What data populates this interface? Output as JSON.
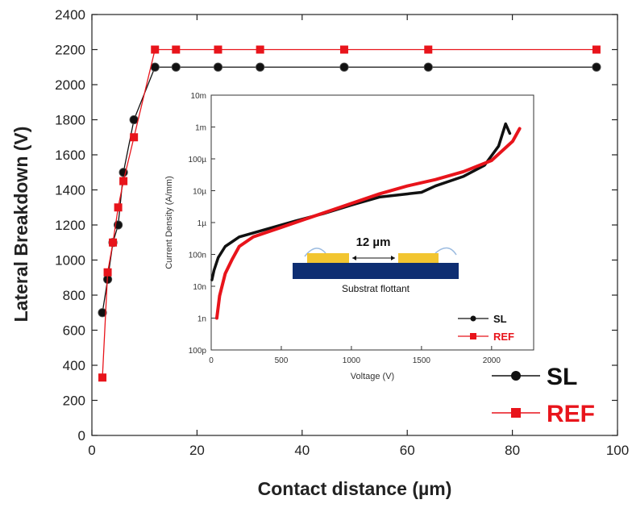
{
  "chart_data": [
    {
      "type": "line",
      "title": "",
      "xlabel": "Contact distance (µm)",
      "ylabel": "Lateral Breakdown (V)",
      "xlim": [
        0,
        100
      ],
      "ylim": [
        0,
        2400
      ],
      "x_ticks": [
        0,
        20,
        40,
        60,
        80,
        100
      ],
      "y_ticks": [
        0,
        200,
        400,
        600,
        800,
        1000,
        1200,
        1400,
        1600,
        1800,
        2000,
        2200,
        2400
      ],
      "legend_position": "bottom-right",
      "series": [
        {
          "name": "SL",
          "color": "#111111",
          "marker": "circle",
          "points": [
            [
              2,
              700
            ],
            [
              3,
              890
            ],
            [
              4,
              1100
            ],
            [
              5,
              1200
            ],
            [
              6,
              1500
            ],
            [
              8,
              1800
            ],
            [
              12,
              2100
            ],
            [
              16,
              2100
            ],
            [
              24,
              2100
            ],
            [
              32,
              2100
            ],
            [
              48,
              2100
            ],
            [
              64,
              2100
            ],
            [
              96,
              2100
            ]
          ]
        },
        {
          "name": "REF",
          "color": "#e8141b",
          "marker": "square",
          "points": [
            [
              2,
              330
            ],
            [
              3,
              930
            ],
            [
              4,
              1100
            ],
            [
              5,
              1300
            ],
            [
              6,
              1450
            ],
            [
              8,
              1700
            ],
            [
              12,
              2200
            ],
            [
              16,
              2200
            ],
            [
              24,
              2200
            ],
            [
              32,
              2200
            ],
            [
              48,
              2200
            ],
            [
              64,
              2200
            ],
            [
              96,
              2200
            ]
          ]
        }
      ]
    },
    {
      "type": "line",
      "title": "",
      "xlabel": "Voltage (V)",
      "ylabel": "Current Density (A/mm)",
      "xlim": [
        0,
        2300
      ],
      "ylim_log10": [
        -10,
        -2
      ],
      "y_scale": "log",
      "x_ticks": [
        0,
        500,
        1000,
        1500,
        2000
      ],
      "y_ticks_log10": [
        -2,
        -3,
        -4,
        -5,
        -6,
        -7,
        -8,
        -9,
        -10
      ],
      "y_tick_labels": [
        "10m",
        "1m",
        "100µ",
        "10µ",
        "1µ",
        "100n",
        "10n",
        "1n",
        "100p"
      ],
      "legend_position": "bottom-right",
      "series": [
        {
          "name": "SL",
          "color": "#111111",
          "points_log10": [
            [
              5,
              -7.8
            ],
            [
              20,
              -7.5
            ],
            [
              50,
              -7.1
            ],
            [
              100,
              -6.75
            ],
            [
              200,
              -6.45
            ],
            [
              400,
              -6.2
            ],
            [
              600,
              -5.95
            ],
            [
              800,
              -5.72
            ],
            [
              1000,
              -5.45
            ],
            [
              1200,
              -5.2
            ],
            [
              1400,
              -5.1
            ],
            [
              1500,
              -5.05
            ],
            [
              1600,
              -4.85
            ],
            [
              1800,
              -4.55
            ],
            [
              1950,
              -4.2
            ],
            [
              2050,
              -3.6
            ],
            [
              2100,
              -2.9
            ],
            [
              2130,
              -3.2
            ]
          ]
        },
        {
          "name": "REF",
          "color": "#e8141b",
          "points_log10": [
            [
              40,
              -9.0
            ],
            [
              60,
              -8.3
            ],
            [
              100,
              -7.6
            ],
            [
              150,
              -7.15
            ],
            [
              200,
              -6.75
            ],
            [
              300,
              -6.45
            ],
            [
              500,
              -6.15
            ],
            [
              700,
              -5.85
            ],
            [
              1000,
              -5.4
            ],
            [
              1200,
              -5.1
            ],
            [
              1400,
              -4.85
            ],
            [
              1600,
              -4.65
            ],
            [
              1800,
              -4.4
            ],
            [
              2000,
              -4.05
            ],
            [
              2150,
              -3.45
            ],
            [
              2200,
              -3.05
            ]
          ]
        }
      ]
    }
  ],
  "inset_diagram": {
    "spacing_label": "12 µm",
    "substrate_label": "Substrat flottant",
    "colors": {
      "contact": "#f2c530",
      "substrate": "#0e2e72",
      "lead": "#9bbbe0"
    }
  },
  "colors": {
    "sl": "#111111",
    "ref": "#e8141b"
  }
}
